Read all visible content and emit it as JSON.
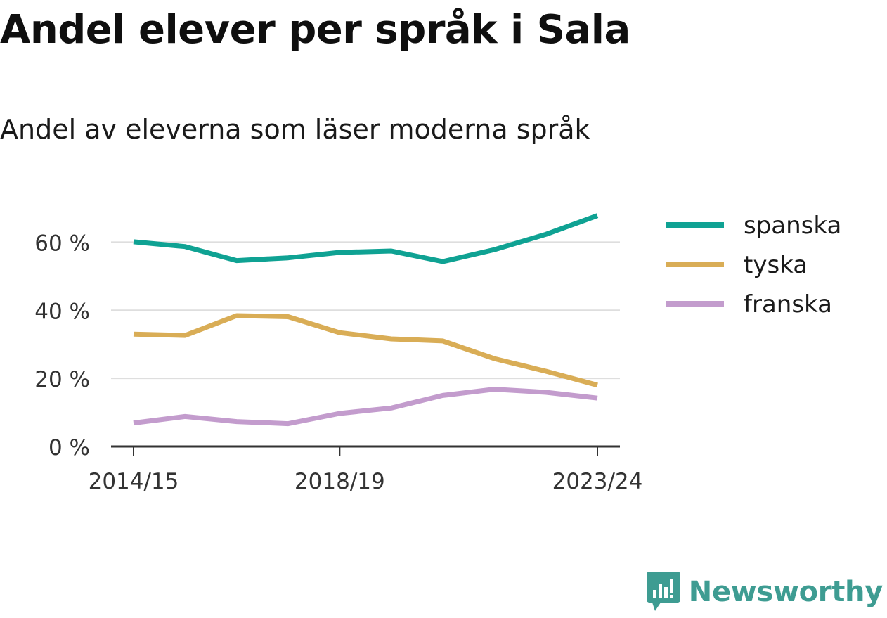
{
  "title": "Andel elever per språk i Sala",
  "subtitle": "Andel av eleverna som läser moderna språk",
  "brand": {
    "name": "Newsworthy",
    "icon": "newsworthy-logo-icon",
    "color": "#3e9c92"
  },
  "chart_data": {
    "type": "line",
    "x": [
      "2014/15",
      "2015/16",
      "2016/17",
      "2017/18",
      "2018/19",
      "2019/20",
      "2020/21",
      "2021/22",
      "2022/23",
      "2023/24"
    ],
    "x_tick_labels": [
      "2014/15",
      "2018/19",
      "2023/24"
    ],
    "y_tick_labels": [
      "0 %",
      "20 %",
      "40 %",
      "60 %"
    ],
    "ylim": [
      0,
      70
    ],
    "grid": true,
    "legend": "right",
    "series": [
      {
        "name": "spanska",
        "color": "#0fa293",
        "values": [
          60.1,
          58.7,
          54.6,
          55.4,
          57.0,
          57.4,
          54.3,
          57.8,
          62.3,
          67.8
        ]
      },
      {
        "name": "tyska",
        "color": "#d9ad56",
        "values": [
          33.0,
          32.6,
          38.4,
          38.1,
          33.4,
          31.6,
          31.0,
          25.8,
          22.1,
          18.0
        ]
      },
      {
        "name": "franska",
        "color": "#c39ccd",
        "values": [
          6.9,
          8.8,
          7.3,
          6.7,
          9.7,
          11.3,
          15.0,
          16.8,
          15.9,
          14.2
        ]
      }
    ]
  }
}
